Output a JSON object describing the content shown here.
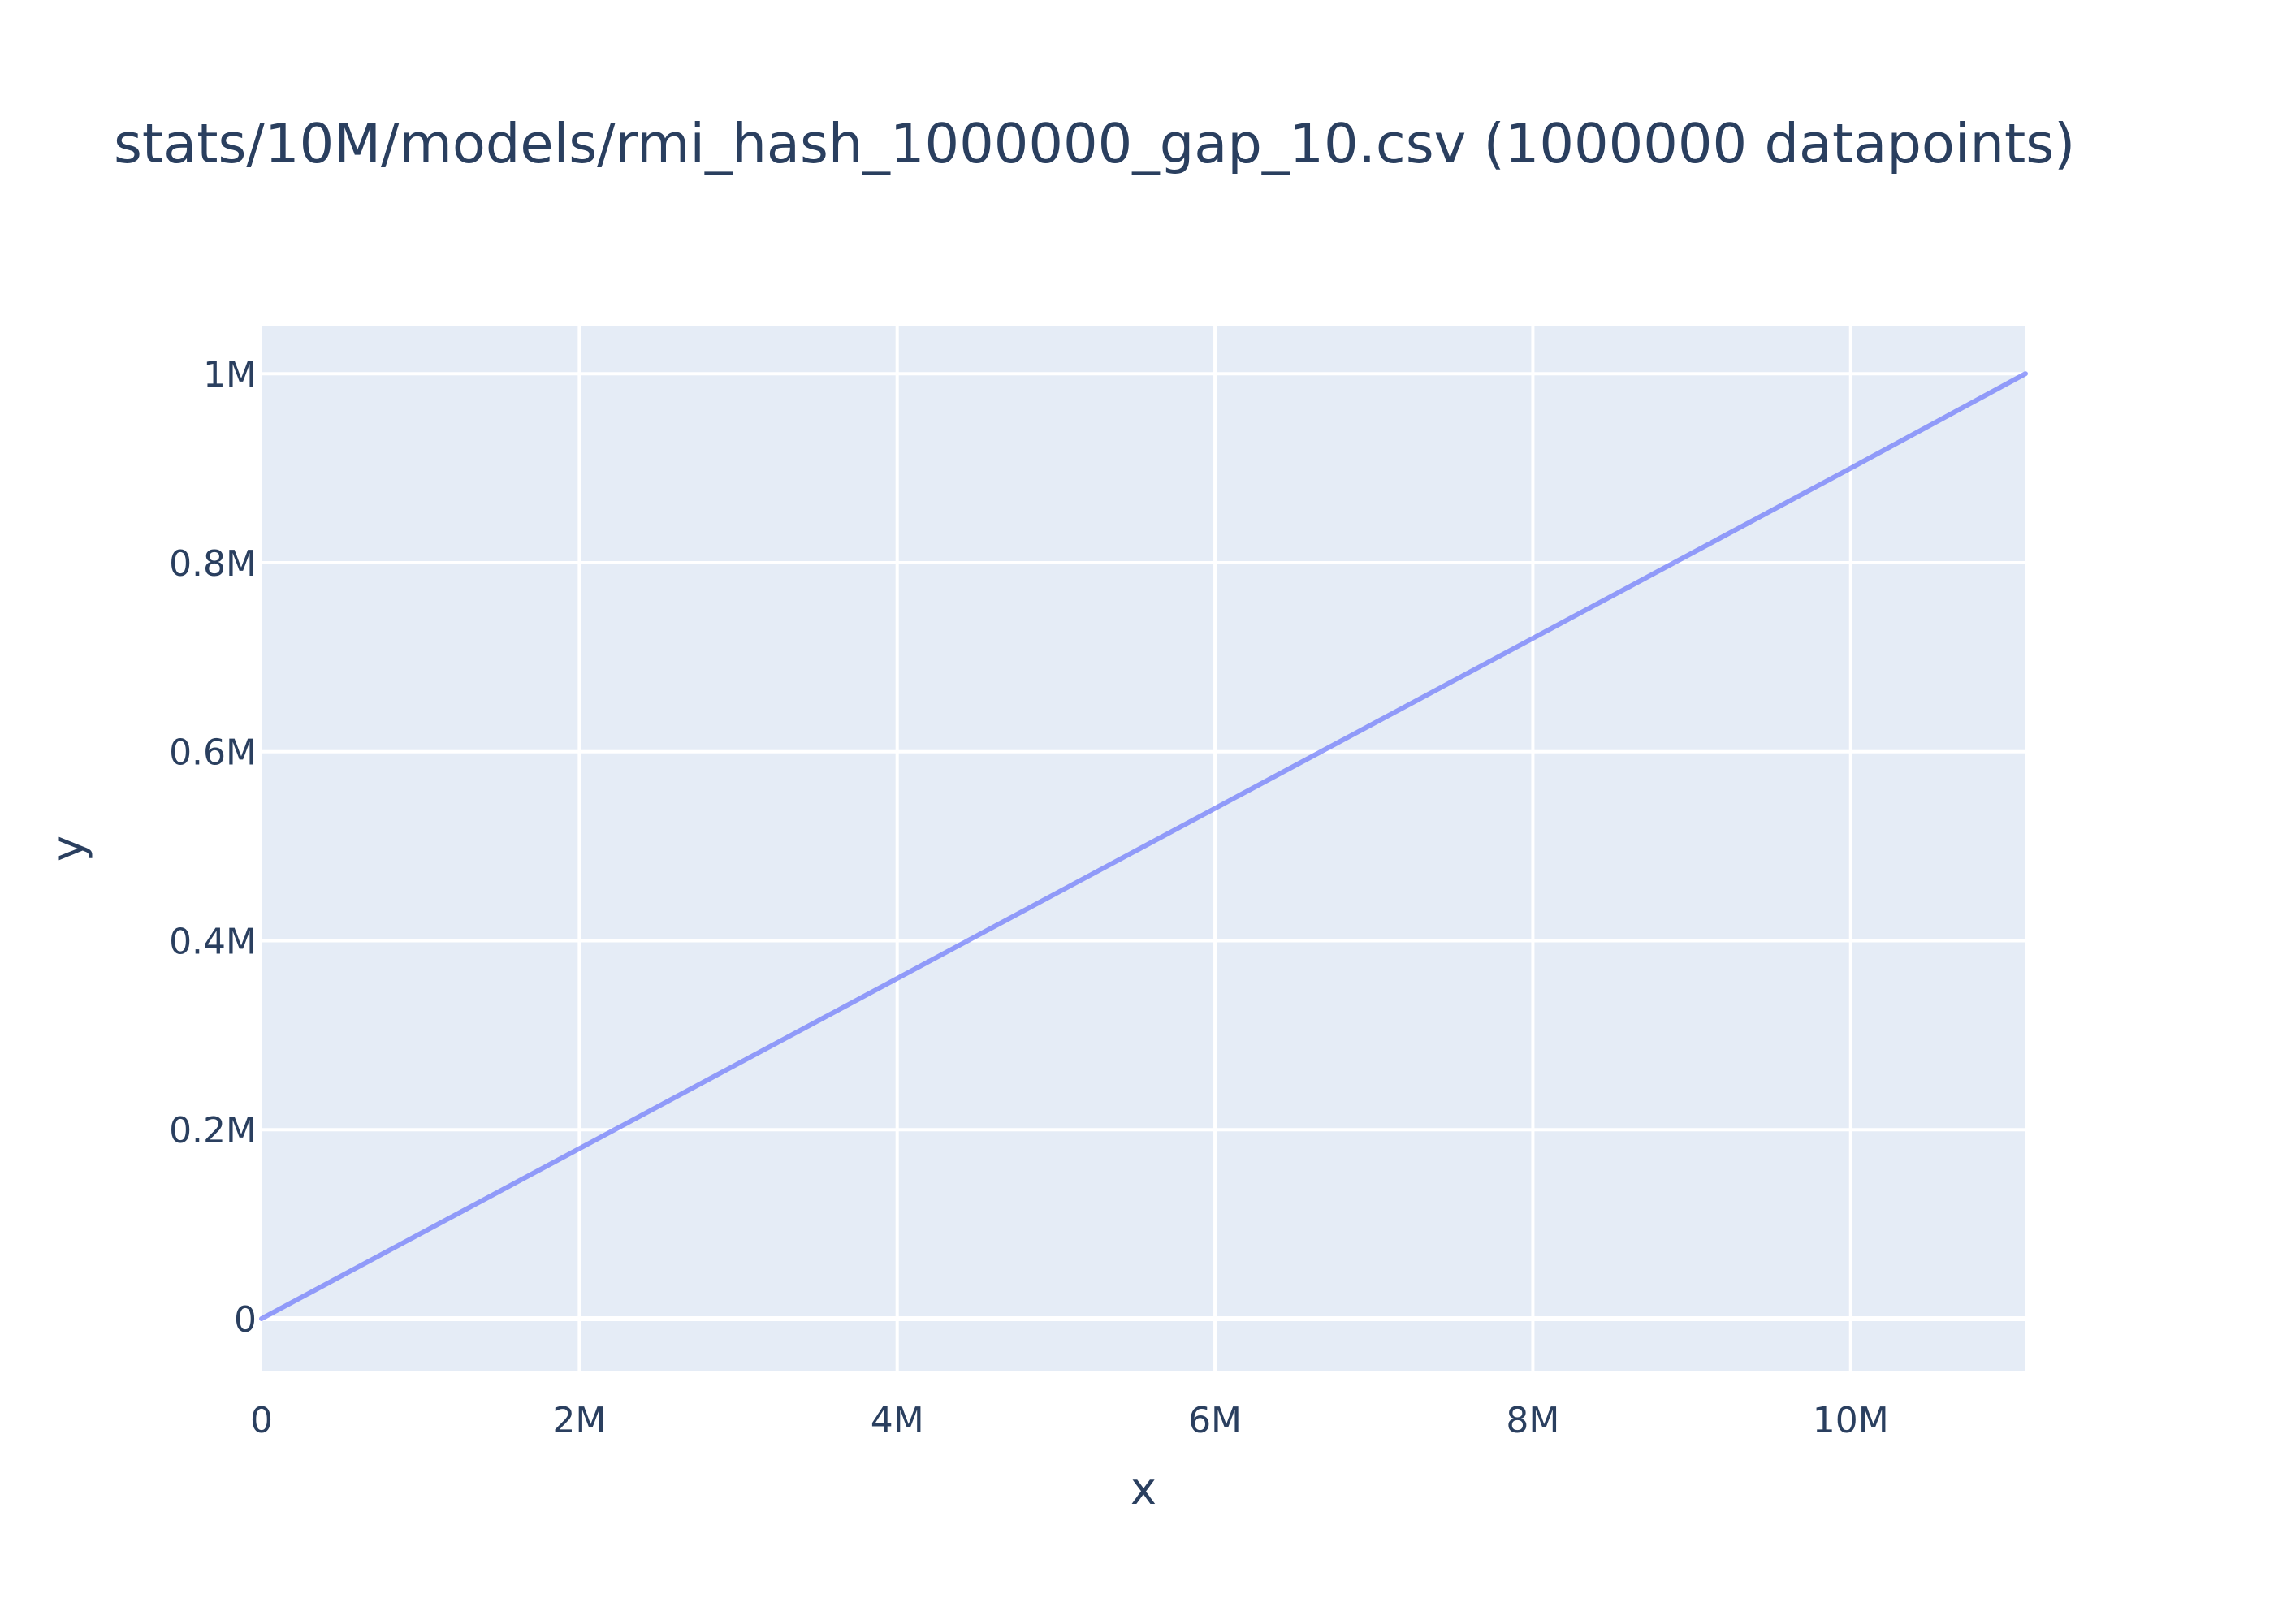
{
  "chart_data": {
    "type": "line",
    "title": "stats/10M/models/rmi_hash_1000000_gap_10.csv (1000000 datapoints)",
    "xlabel": "x",
    "ylabel": "y",
    "xlim": [
      0,
      11100000
    ],
    "ylim": [
      -55000,
      1050000
    ],
    "x_ticks": [
      {
        "value": 0,
        "label": "0"
      },
      {
        "value": 2000000,
        "label": "2M"
      },
      {
        "value": 4000000,
        "label": "4M"
      },
      {
        "value": 6000000,
        "label": "6M"
      },
      {
        "value": 8000000,
        "label": "8M"
      },
      {
        "value": 10000000,
        "label": "10M"
      }
    ],
    "y_ticks": [
      {
        "value": 0,
        "label": "0"
      },
      {
        "value": 200000,
        "label": "0.2M"
      },
      {
        "value": 400000,
        "label": "0.4M"
      },
      {
        "value": 600000,
        "label": "0.6M"
      },
      {
        "value": 800000,
        "label": "0.8M"
      },
      {
        "value": 1000000,
        "label": "1M"
      }
    ],
    "grid": true,
    "legend": "none",
    "series": [
      {
        "x": [
          0,
          2000000,
          4000000,
          6000000,
          8000000,
          10000000,
          11100000
        ],
        "y": [
          0,
          180000,
          360000,
          540000,
          720000,
          900000,
          1000000
        ],
        "color": "#636efa"
      }
    ]
  },
  "colors": {
    "plot_bg": "#e5ecf6",
    "grid": "#ffffff",
    "text": "#2a3f5f",
    "line": "#636efa"
  }
}
